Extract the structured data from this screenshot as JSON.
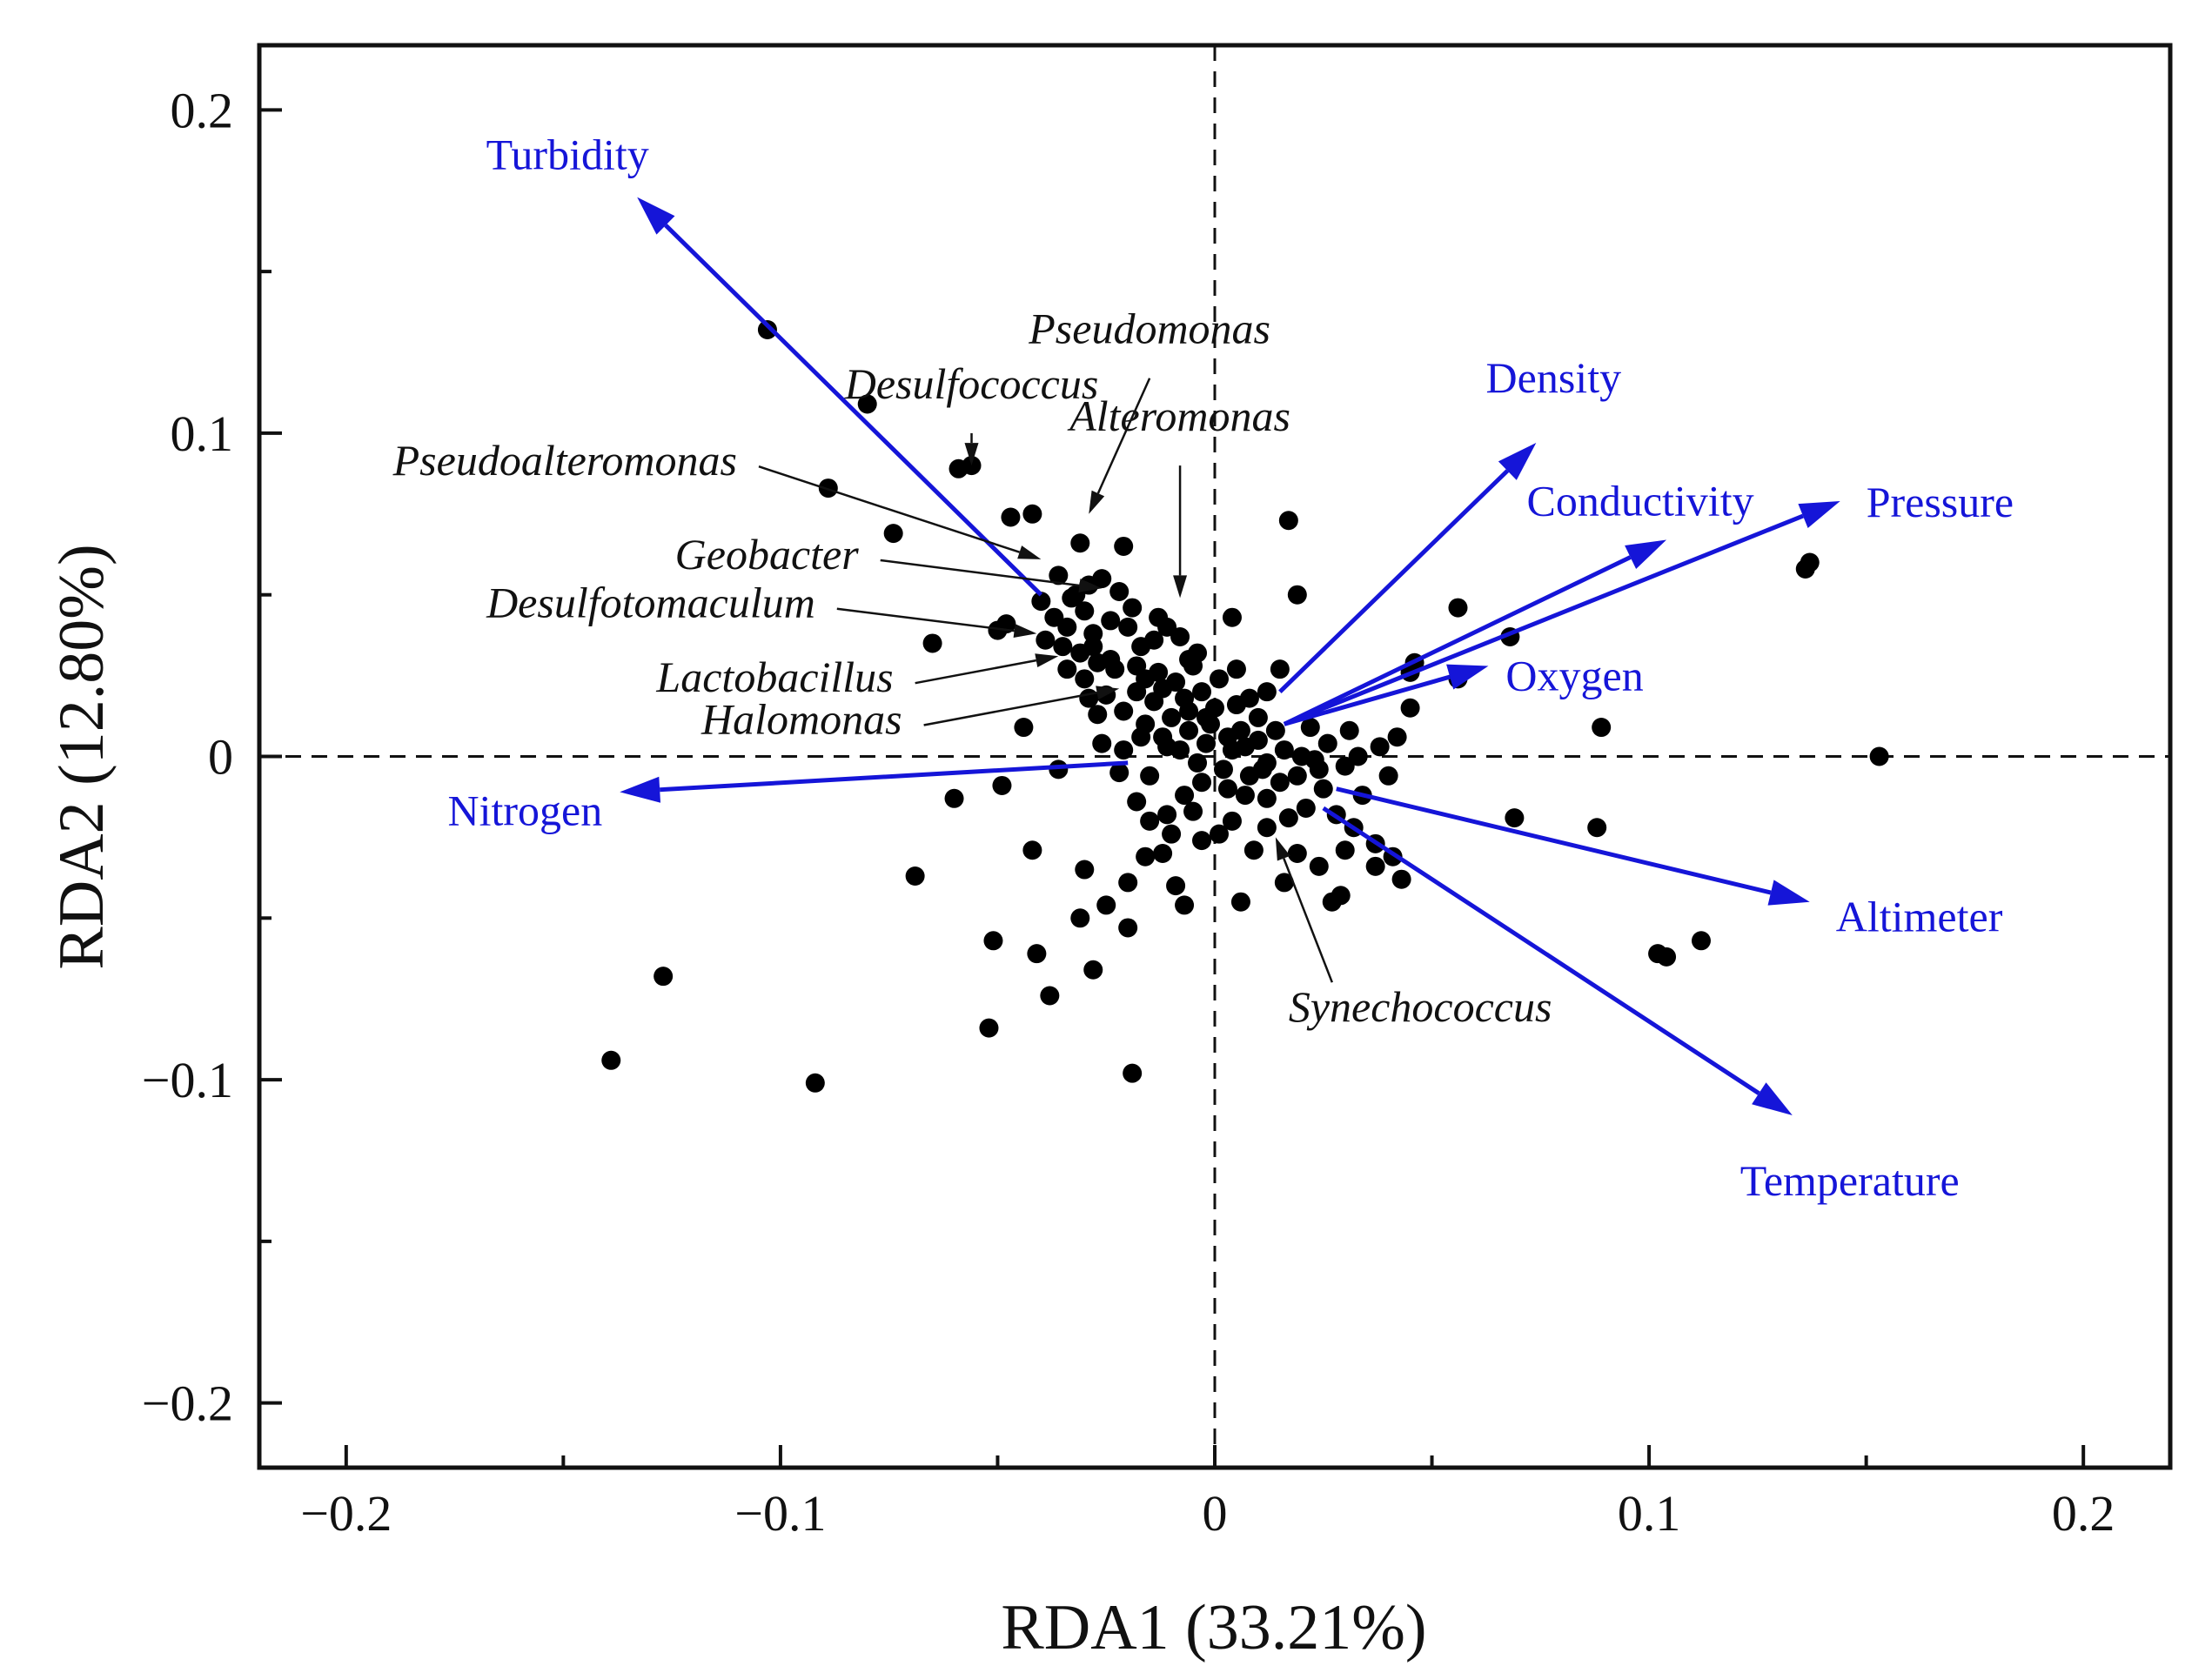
{
  "chart_data": {
    "type": "scatter",
    "title": "",
    "xlabel": "RDA1 (33.21%)",
    "ylabel": "RDA2 (12.80%)",
    "xlim": [
      -0.22,
      0.22
    ],
    "ylim": [
      -0.22,
      0.22
    ],
    "xticks": [
      -0.2,
      -0.1,
      0,
      0.1,
      0.2
    ],
    "xtick_labels": [
      "−0.2",
      "−0.1",
      "0",
      "0.1",
      "0.2"
    ],
    "yticks": [
      -0.2,
      -0.1,
      0,
      0.1,
      0.2
    ],
    "ytick_labels": [
      "−0.2",
      "−0.1",
      "0",
      "0.1",
      "0.2"
    ],
    "grid": false,
    "zero_lines": "dashed",
    "colors": {
      "vector": "#1515d8",
      "point": "#000000",
      "axis": "#111111"
    },
    "env_vectors": [
      {
        "name": "Turbidity",
        "x0": -0.04,
        "y0": 0.05,
        "x": -0.133,
        "y": 0.173
      },
      {
        "name": "Density",
        "x0": 0.015,
        "y0": 0.02,
        "x": 0.074,
        "y": 0.097
      },
      {
        "name": "Conductivity",
        "x0": 0.016,
        "y0": 0.01,
        "x": 0.104,
        "y": 0.067
      },
      {
        "name": "Pressure",
        "x0": 0.016,
        "y0": 0.01,
        "x": 0.144,
        "y": 0.079
      },
      {
        "name": "Oxygen",
        "x0": 0.016,
        "y0": 0.01,
        "x": 0.063,
        "y": 0.028
      },
      {
        "name": "Nitrogen",
        "x0": -0.02,
        "y0": -0.002,
        "x": -0.137,
        "y": -0.011
      },
      {
        "name": "Altimeter",
        "x0": 0.028,
        "y0": -0.01,
        "x": 0.137,
        "y": -0.045
      },
      {
        "name": "Temperature",
        "x0": 0.025,
        "y0": -0.016,
        "x": 0.133,
        "y": -0.111
      }
    ],
    "taxa": [
      {
        "name": "Desulfococcus",
        "x": -0.056,
        "y": 0.1,
        "px": -0.056,
        "py": 0.09
      },
      {
        "name": "Pseudomonas",
        "x": -0.015,
        "y": 0.117,
        "px": -0.029,
        "py": 0.075
      },
      {
        "name": "Alteromonas",
        "x": -0.008,
        "y": 0.09,
        "px": -0.008,
        "py": 0.049
      },
      {
        "name": "Pseudoalteromonas",
        "x": -0.108,
        "y": 0.087,
        "px": -0.04,
        "py": 0.061
      },
      {
        "name": "Geobacter",
        "x": -0.08,
        "y": 0.058,
        "px": -0.026,
        "py": 0.052
      },
      {
        "name": "Desulfotomaculum",
        "x": -0.09,
        "y": 0.043,
        "px": -0.041,
        "py": 0.038
      },
      {
        "name": "Lactobacillus",
        "x": -0.072,
        "y": 0.02,
        "px": -0.036,
        "py": 0.031
      },
      {
        "name": "Halomonas",
        "x": -0.07,
        "y": 0.007,
        "px": -0.022,
        "py": 0.021
      },
      {
        "name": "Synechococcus",
        "x": 0.017,
        "y": -0.082,
        "px": 0.014,
        "py": -0.025
      }
    ],
    "sites": [
      [
        -0.103,
        0.132
      ],
      [
        -0.08,
        0.109
      ],
      [
        -0.089,
        0.083
      ],
      [
        -0.074,
        0.069
      ],
      [
        -0.065,
        0.035
      ],
      [
        -0.059,
        0.089
      ],
      [
        -0.056,
        0.09
      ],
      [
        -0.047,
        0.074
      ],
      [
        -0.042,
        0.075
      ],
      [
        -0.048,
        0.041
      ],
      [
        -0.05,
        0.039
      ],
      [
        -0.036,
        0.056
      ],
      [
        -0.031,
        0.066
      ],
      [
        -0.021,
        0.065
      ],
      [
        -0.033,
        0.049
      ],
      [
        -0.026,
        0.055
      ],
      [
        -0.019,
        0.046
      ],
      [
        -0.04,
        0.048
      ],
      [
        -0.037,
        0.043
      ],
      [
        -0.034,
        0.04
      ],
      [
        -0.03,
        0.045
      ],
      [
        -0.028,
        0.038
      ],
      [
        -0.024,
        0.042
      ],
      [
        -0.02,
        0.04
      ],
      [
        -0.017,
        0.034
      ],
      [
        -0.014,
        0.036
      ],
      [
        -0.011,
        0.04
      ],
      [
        -0.008,
        0.037
      ],
      [
        -0.004,
        0.032
      ],
      [
        -0.031,
        0.032
      ],
      [
        -0.027,
        0.029
      ],
      [
        -0.023,
        0.027
      ],
      [
        -0.018,
        0.028
      ],
      [
        -0.013,
        0.026
      ],
      [
        -0.009,
        0.023
      ],
      [
        -0.003,
        0.02
      ],
      [
        0.0,
        0.015
      ],
      [
        0.006,
        0.008
      ],
      [
        0.01,
        0.005
      ],
      [
        0.004,
        0.002
      ],
      [
        -0.002,
        0.004
      ],
      [
        -0.006,
        0.008
      ],
      [
        -0.01,
        0.012
      ],
      [
        -0.014,
        0.017
      ],
      [
        -0.018,
        0.02
      ],
      [
        -0.021,
        0.014
      ],
      [
        -0.016,
        0.01
      ],
      [
        -0.012,
        0.006
      ],
      [
        -0.008,
        0.002
      ],
      [
        -0.004,
        -0.002
      ],
      [
        0.002,
        -0.004
      ],
      [
        0.008,
        -0.006
      ],
      [
        0.012,
        -0.002
      ],
      [
        0.016,
        0.002
      ],
      [
        0.014,
        0.008
      ],
      [
        0.01,
        0.012
      ],
      [
        0.005,
        0.016
      ],
      [
        0.001,
        0.024
      ],
      [
        -0.005,
        0.028
      ],
      [
        0.004,
        0.043
      ],
      [
        0.005,
        0.027
      ],
      [
        0.015,
        0.027
      ],
      [
        0.017,
        0.073
      ],
      [
        0.019,
        0.05
      ],
      [
        0.03,
        -0.003
      ],
      [
        0.025,
        -0.01
      ],
      [
        0.021,
        -0.016
      ],
      [
        0.017,
        -0.019
      ],
      [
        0.012,
        -0.013
      ],
      [
        0.007,
        -0.012
      ],
      [
        0.003,
        -0.01
      ],
      [
        -0.003,
        -0.008
      ],
      [
        -0.007,
        -0.012
      ],
      [
        -0.011,
        -0.018
      ],
      [
        -0.015,
        -0.02
      ],
      [
        -0.018,
        -0.014
      ],
      [
        -0.022,
        -0.005
      ],
      [
        -0.021,
        0.002
      ],
      [
        -0.017,
        0.006
      ],
      [
        -0.026,
        0.004
      ],
      [
        -0.029,
        0.018
      ],
      [
        -0.025,
        0.019
      ],
      [
        -0.027,
        0.013
      ],
      [
        -0.044,
        0.009
      ],
      [
        -0.036,
        -0.004
      ],
      [
        -0.049,
        -0.009
      ],
      [
        -0.06,
        -0.013
      ],
      [
        -0.069,
        -0.037
      ],
      [
        -0.042,
        -0.029
      ],
      [
        -0.03,
        -0.035
      ],
      [
        -0.025,
        -0.046
      ],
      [
        -0.031,
        -0.05
      ],
      [
        -0.02,
        -0.039
      ],
      [
        -0.02,
        -0.053
      ],
      [
        -0.016,
        -0.031
      ],
      [
        -0.012,
        -0.03
      ],
      [
        -0.009,
        -0.04
      ],
      [
        -0.007,
        -0.046
      ],
      [
        -0.003,
        -0.026
      ],
      [
        0.001,
        -0.024
      ],
      [
        0.006,
        -0.045
      ],
      [
        0.009,
        -0.029
      ],
      [
        0.012,
        -0.022
      ],
      [
        0.016,
        -0.039
      ],
      [
        0.019,
        -0.03
      ],
      [
        0.024,
        -0.034
      ],
      [
        0.027,
        -0.045
      ],
      [
        0.029,
        -0.043
      ],
      [
        0.03,
        -0.029
      ],
      [
        0.037,
        -0.027
      ],
      [
        0.037,
        -0.034
      ],
      [
        0.041,
        -0.031
      ],
      [
        0.043,
        -0.038
      ],
      [
        0.034,
        -0.012
      ],
      [
        0.04,
        -0.006
      ],
      [
        0.033,
        0.0
      ],
      [
        0.042,
        0.006
      ],
      [
        0.045,
        0.015
      ],
      [
        0.045,
        0.026
      ],
      [
        0.046,
        0.029
      ],
      [
        0.056,
        0.046
      ],
      [
        0.056,
        0.024
      ],
      [
        0.068,
        0.037
      ],
      [
        0.069,
        -0.019
      ],
      [
        0.089,
        0.009
      ],
      [
        0.088,
        -0.022
      ],
      [
        0.102,
        -0.061
      ],
      [
        0.104,
        -0.062
      ],
      [
        0.112,
        -0.057
      ],
      [
        0.136,
        0.058
      ],
      [
        0.137,
        0.06
      ],
      [
        0.153,
        0.0
      ],
      [
        -0.051,
        -0.057
      ],
      [
        -0.052,
        -0.084
      ],
      [
        -0.041,
        -0.061
      ],
      [
        -0.038,
        -0.074
      ],
      [
        -0.028,
        -0.066
      ],
      [
        -0.019,
        -0.098
      ],
      [
        -0.092,
        -0.101
      ],
      [
        -0.127,
        -0.068
      ],
      [
        -0.139,
        -0.094
      ],
      [
        0.038,
        0.003
      ],
      [
        0.031,
        0.008
      ],
      [
        0.026,
        0.004
      ],
      [
        0.022,
        0.009
      ],
      [
        0.02,
        0.0
      ],
      [
        0.024,
        -0.004
      ],
      [
        0.028,
        -0.018
      ],
      [
        0.032,
        -0.022
      ],
      [
        -0.015,
        -0.006
      ],
      [
        -0.01,
        -0.024
      ],
      [
        -0.005,
        -0.017
      ],
      [
        0.004,
        -0.02
      ],
      [
        0.008,
        0.018
      ],
      [
        0.012,
        0.02
      ],
      [
        -0.001,
        0.01
      ],
      [
        -0.006,
        0.014
      ],
      [
        -0.011,
        0.003
      ],
      [
        -0.028,
        0.034
      ],
      [
        -0.024,
        0.03
      ],
      [
        -0.016,
        0.024
      ],
      [
        -0.012,
        0.021
      ],
      [
        -0.007,
        0.018
      ],
      [
        -0.002,
        0.012
      ],
      [
        0.003,
        0.006
      ],
      [
        0.007,
        0.003
      ],
      [
        0.011,
        -0.004
      ],
      [
        0.015,
        -0.008
      ],
      [
        0.019,
        -0.006
      ],
      [
        0.023,
        -0.001
      ],
      [
        -0.039,
        0.036
      ],
      [
        -0.035,
        0.034
      ],
      [
        -0.032,
        0.05
      ],
      [
        -0.029,
        0.053
      ],
      [
        -0.022,
        0.051
      ],
      [
        -0.013,
        0.043
      ],
      [
        -0.006,
        0.03
      ],
      [
        -0.03,
        0.024
      ],
      [
        -0.034,
        0.027
      ]
    ]
  }
}
